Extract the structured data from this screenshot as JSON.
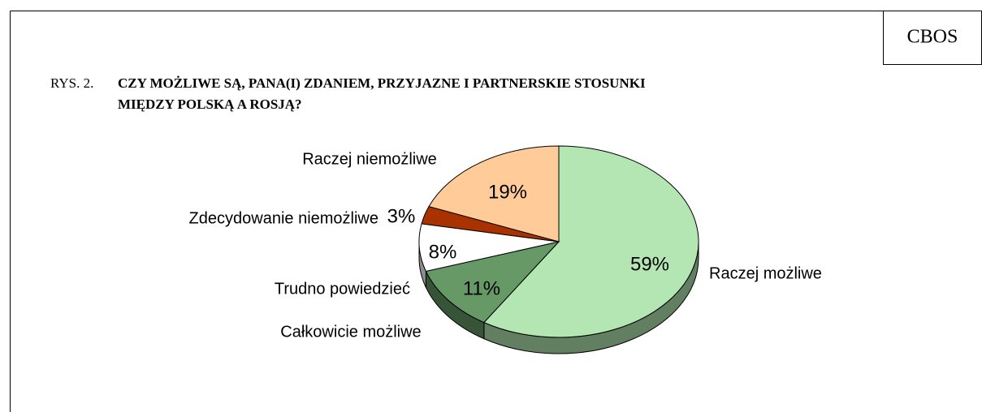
{
  "source": "CBOS",
  "chart_data": {
    "type": "pie",
    "figure_label": "RYS. 2.",
    "title": "CZY MOŻLIWE SĄ, PANA(I) ZDANIEM, PRZYJAZNE I PARTNERSKIE STOSUNKI MIĘDZY POLSKĄ A  ROSJĄ?",
    "categories": [
      "Raczej możliwe",
      "Całkowicie możliwe",
      "Trudno powiedzieć",
      "Zdecydowanie niemożliwe",
      "Raczej niemożliwe"
    ],
    "values": [
      59,
      11,
      8,
      3,
      19
    ],
    "value_labels": [
      "59%",
      "11%",
      "8%",
      "3%",
      "19%"
    ],
    "colors": [
      "#b3e6b3",
      "#669966",
      "#ffffff",
      "#a83200",
      "#ffcc99"
    ]
  }
}
